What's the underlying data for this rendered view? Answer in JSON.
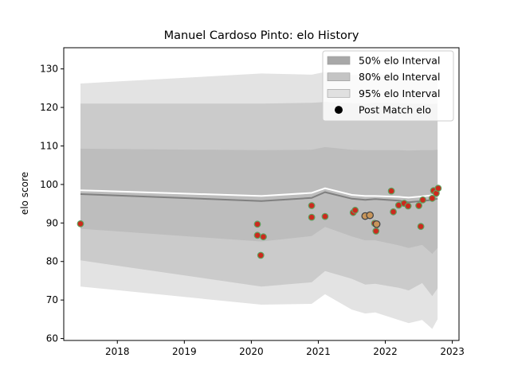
{
  "chart_data": {
    "type": "line",
    "title": "Manuel Cardoso Pinto: elo History",
    "xlabel": "",
    "ylabel": "elo score",
    "xlim": [
      2017.2,
      2023.1
    ],
    "ylim": [
      59.5,
      135.5
    ],
    "x_ticks": [
      2018,
      2019,
      2020,
      2021,
      2022,
      2023
    ],
    "x_tick_labels": [
      "2018",
      "2019",
      "2020",
      "2021",
      "2022",
      "2023"
    ],
    "y_ticks": [
      60,
      70,
      80,
      90,
      100,
      110,
      120,
      130
    ],
    "y_tick_labels": [
      "60",
      "70",
      "80",
      "90",
      "100",
      "110",
      "120",
      "130"
    ],
    "legend": {
      "placement": "top-right",
      "entries": [
        {
          "label": "50% elo Interval",
          "color": "#a8a8a8",
          "kind": "patch"
        },
        {
          "label": "80% elo Interval",
          "color": "#c4c4c4",
          "kind": "patch"
        },
        {
          "label": "95% elo Interval",
          "color": "#e0e0e0",
          "kind": "patch"
        },
        {
          "label": "Post Match elo",
          "color": "#000000",
          "kind": "marker"
        }
      ]
    },
    "colors": {
      "band95": "#e3e3e3",
      "band80": "#cbcbcb",
      "band50": "#bdbdbd",
      "mean_line": "#808080",
      "post_line": "#ffffff",
      "marker_fill": "#cc2a1e",
      "marker_edge": "#5fa05f",
      "highlight_fill": "#c8955a",
      "highlight_edge": "#444444"
    },
    "band_x": [
      2017.45,
      2020.15,
      2020.9,
      2021.1,
      2021.5,
      2021.7,
      2021.85,
      2022.2,
      2022.35,
      2022.55,
      2022.7,
      2022.78
    ],
    "band95_upper": [
      126.2,
      128.8,
      128.5,
      129.2,
      128.4,
      128.3,
      128.6,
      128.2,
      128.0,
      128.0,
      127.8,
      128.0
    ],
    "band95_lower": [
      73.5,
      68.8,
      69.0,
      71.5,
      67.5,
      66.5,
      66.8,
      64.8,
      64.0,
      64.8,
      62.5,
      65.0
    ],
    "band80_upper": [
      121.0,
      121.0,
      121.2,
      121.4,
      121.1,
      121.0,
      121.2,
      121.1,
      121.0,
      121.0,
      120.9,
      121.0
    ],
    "band80_lower": [
      80.3,
      73.5,
      74.6,
      77.5,
      75.5,
      74.0,
      74.2,
      73.2,
      72.5,
      74.4,
      71.0,
      73.0
    ],
    "band50_upper": [
      109.3,
      108.9,
      109.0,
      109.7,
      109.0,
      108.9,
      108.9,
      108.9,
      108.8,
      108.9,
      108.9,
      109.0
    ],
    "band50_lower": [
      88.5,
      85.2,
      86.6,
      89.0,
      86.5,
      85.5,
      85.5,
      84.2,
      83.5,
      84.3,
      82.0,
      83.5
    ],
    "series": [
      {
        "role": "mean",
        "x": [
          2017.45,
          2020.15,
          2020.9,
          2021.1,
          2021.5,
          2021.7,
          2021.85,
          2022.2,
          2022.35,
          2022.55,
          2022.7,
          2022.78
        ],
        "values": [
          97.5,
          95.7,
          96.5,
          98.0,
          96.3,
          96.0,
          96.2,
          95.8,
          95.4,
          95.7,
          96.0,
          96.3
        ]
      },
      {
        "role": "post-match",
        "x": [
          2017.45,
          2020.15,
          2020.9,
          2021.1,
          2021.5,
          2021.7,
          2021.85,
          2022.2,
          2022.35,
          2022.55,
          2022.7,
          2022.78
        ],
        "values": [
          98.5,
          97.0,
          97.8,
          99.0,
          97.3,
          97.0,
          97.0,
          96.8,
          96.6,
          96.9,
          97.2,
          97.7
        ]
      },
      {
        "role": "matches",
        "points": [
          {
            "x": 2017.45,
            "y": 89.8
          },
          {
            "x": 2020.09,
            "y": 89.7
          },
          {
            "x": 2020.09,
            "y": 86.8
          },
          {
            "x": 2020.14,
            "y": 81.6
          },
          {
            "x": 2020.18,
            "y": 86.4
          },
          {
            "x": 2020.9,
            "y": 94.5
          },
          {
            "x": 2020.9,
            "y": 91.5
          },
          {
            "x": 2021.1,
            "y": 91.7
          },
          {
            "x": 2021.52,
            "y": 92.7
          },
          {
            "x": 2021.55,
            "y": 93.3
          },
          {
            "x": 2021.7,
            "y": 91.8,
            "highlight": true
          },
          {
            "x": 2021.77,
            "y": 92.0,
            "highlight": true
          },
          {
            "x": 2021.84,
            "y": 89.9
          },
          {
            "x": 2021.87,
            "y": 89.7,
            "highlight": true
          },
          {
            "x": 2021.86,
            "y": 87.9
          },
          {
            "x": 2022.09,
            "y": 98.3
          },
          {
            "x": 2022.12,
            "y": 92.9
          },
          {
            "x": 2022.2,
            "y": 94.6
          },
          {
            "x": 2022.28,
            "y": 95.1
          },
          {
            "x": 2022.34,
            "y": 94.4
          },
          {
            "x": 2022.5,
            "y": 94.5
          },
          {
            "x": 2022.53,
            "y": 89.1
          },
          {
            "x": 2022.56,
            "y": 96.0
          },
          {
            "x": 2022.7,
            "y": 96.4
          },
          {
            "x": 2022.72,
            "y": 98.4
          },
          {
            "x": 2022.76,
            "y": 97.7
          },
          {
            "x": 2022.79,
            "y": 99.0
          }
        ]
      }
    ]
  }
}
